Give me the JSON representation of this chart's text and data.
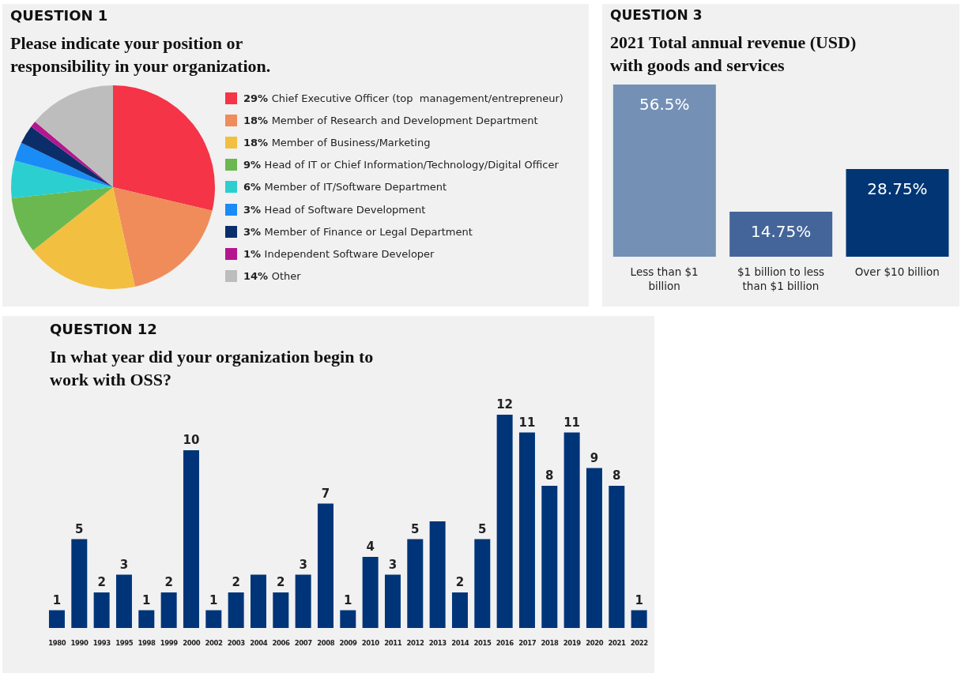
{
  "chart_data": [
    {
      "type": "pie",
      "title": "QUESTION 1",
      "subtitle": "Please indicate your position or responsibility in your organization.",
      "legend": "right",
      "categories": [
        "29% Chief Executive Officer (top  management/entrepreneur)",
        "18% Member of Research and Development Department",
        "18% Member of Business/Marketing",
        "9% Head of IT or Chief Information/Technology/Digital Officer",
        "6% Member of IT/Software Department",
        "3% Head of Software Development",
        "3% Member of Finance or Legal Department",
        "1% Independent Software Developer",
        "14% Other"
      ],
      "values": [
        29,
        18,
        18,
        9,
        6,
        3,
        3,
        1,
        14
      ],
      "colors": [
        "#f53447",
        "#ef8c5a",
        "#f2bf40",
        "#6ab84f",
        "#2ccfcf",
        "#1a8cf5",
        "#0b2e6b",
        "#b5168f",
        "#bdbdbd"
      ]
    },
    {
      "type": "bar",
      "title": "QUESTION 3",
      "subtitle": "2021 Total annual revenue (USD) with goods and services",
      "relative": false,
      "categories": [
        "Less than $1 billion",
        "$1 billion to less than $1 billion",
        "Over $10 billion"
      ],
      "values": [
        56.5,
        14.75,
        28.75
      ],
      "value_labels": [
        "56.5%",
        "14.75%",
        "28.75%"
      ],
      "colors": [
        "#7490b5",
        "#44659a",
        "#013574"
      ]
    },
    {
      "type": "bar",
      "title": "QUESTION 12",
      "subtitle": "In what year did your organization begin to work with OSS?",
      "categories": [
        "1980",
        "1990",
        "1993",
        "1995",
        "1998",
        "1999",
        "2000",
        "2002",
        "2003",
        "2004",
        "2006",
        "2007",
        "2008",
        "2009",
        "2010",
        "2011",
        "2012",
        "2013",
        "2014",
        "2015",
        "2016",
        "2017",
        "2018",
        "2019",
        "2020",
        "2021",
        "2022"
      ],
      "values": [
        1,
        5,
        2,
        3,
        1,
        2,
        10,
        1,
        2,
        3,
        2,
        3,
        7,
        1,
        4,
        3,
        5,
        6,
        2,
        5,
        12,
        11,
        8,
        11,
        9,
        8,
        1
      ],
      "value_labels": [
        "1",
        "5",
        "2",
        "3",
        "1",
        "2",
        "10",
        "1",
        "2",
        null,
        "2",
        "3",
        "7",
        "1",
        "4",
        "3",
        "5",
        null,
        "2",
        "5",
        "12",
        "11",
        "8",
        "11",
        "9",
        "8",
        "1"
      ],
      "color": "#003479"
    }
  ]
}
